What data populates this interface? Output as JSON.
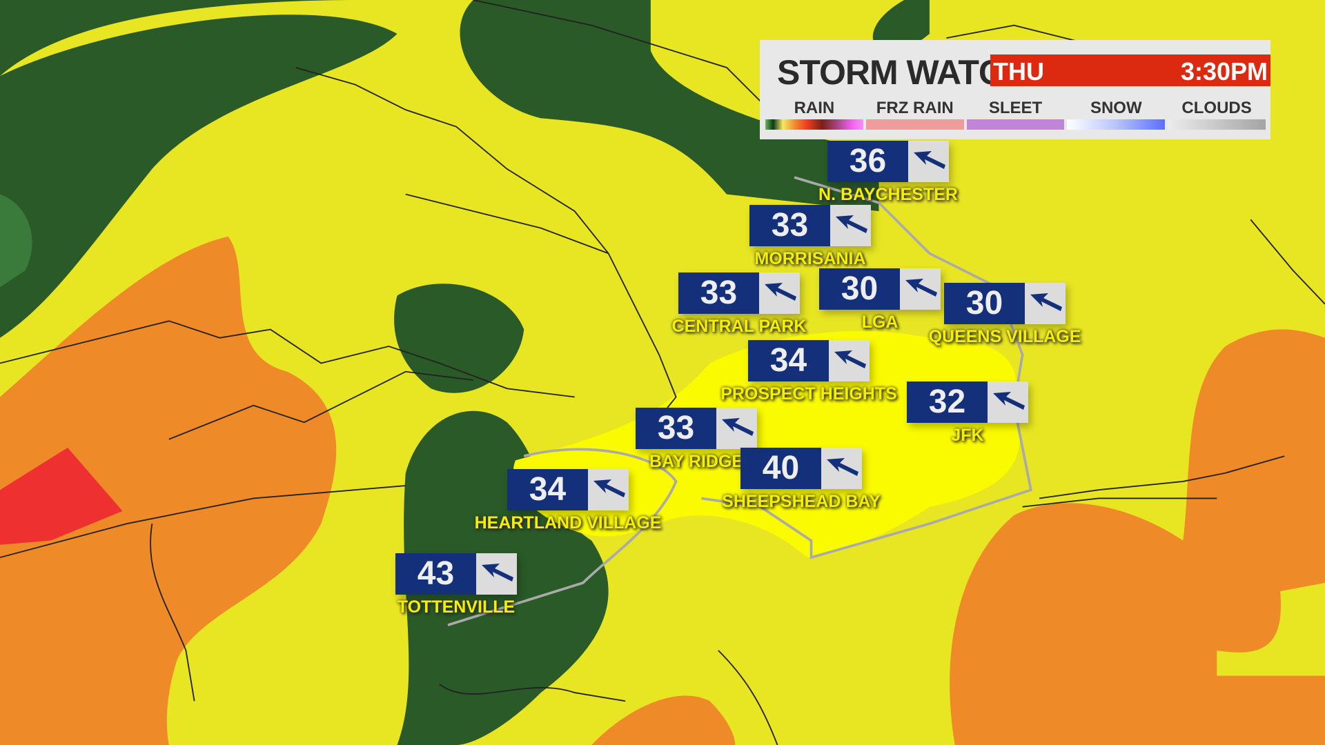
{
  "header": {
    "title": "STORM WATCH",
    "day": "THU",
    "time": "3:30PM"
  },
  "legend": [
    {
      "label": "RAIN",
      "gradient": "linear-gradient(90deg,#6cb85c,#0b3a16 8%,#f8e860 18%,#f08a30 30%,#f04020 42%,#7a2018 58%,#b04890 75%,#f060f0 88%,#f890f8)"
    },
    {
      "label": "FRZ RAIN",
      "gradient": "#f09c9c"
    },
    {
      "label": "SLEET",
      "gradient": "#c084d8"
    },
    {
      "label": "SNOW",
      "gradient": "linear-gradient(90deg,#ffffff,#b8c4fc 50%,#5a70fc)"
    },
    {
      "label": "CLOUDS",
      "gradient": "linear-gradient(90deg,#ececec,#a4a4a4)"
    }
  ],
  "stations": [
    {
      "name": "N. BAYCHESTER",
      "temp": "36",
      "wind": "arrow-northwest-icon"
    },
    {
      "name": "MORRISANIA",
      "temp": "33",
      "wind": "arrow-northwest-icon"
    },
    {
      "name": "CENTRAL PARK",
      "temp": "33",
      "wind": "arrow-northwest-icon"
    },
    {
      "name": "LGA",
      "temp": "30",
      "wind": "arrow-northwest-icon"
    },
    {
      "name": "QUEENS VILLAGE",
      "temp": "30",
      "wind": "arrow-northwest-icon"
    },
    {
      "name": "PROSPECT HEIGHTS",
      "temp": "34",
      "wind": "arrow-northwest-icon"
    },
    {
      "name": "JFK",
      "temp": "32",
      "wind": "arrow-northwest-icon"
    },
    {
      "name": "BAY RIDGE",
      "temp": "33",
      "wind": "arrow-northwest-icon"
    },
    {
      "name": "SHEEPSHEAD BAY",
      "temp": "40",
      "wind": "arrow-northwest-icon"
    },
    {
      "name": "HEARTLAND VILLAGE",
      "temp": "34",
      "wind": "arrow-northwest-icon"
    },
    {
      "name": "TOTTENVILLE",
      "temp": "43",
      "wind": "arrow-northwest-icon"
    }
  ],
  "colors": {
    "dark_green": "#2a5a28",
    "yellow": "#e8e622",
    "bright_yellow": "#fafa00",
    "orange": "#ee8a28",
    "red": "#ee3030",
    "station_blue": "#14307a"
  }
}
